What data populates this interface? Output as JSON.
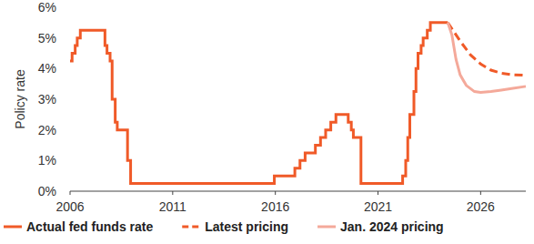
{
  "chart_data": {
    "type": "line",
    "y_label": "Policy rate",
    "xlim": [
      2006,
      2028.2
    ],
    "xticks": [
      2006,
      2011,
      2016,
      2021,
      2026
    ],
    "ylim": [
      0,
      6
    ],
    "yticks": [
      {
        "value": 0,
        "label": "0%"
      },
      {
        "value": 1,
        "label": "1%"
      },
      {
        "value": 2,
        "label": "2%"
      },
      {
        "value": 3,
        "label": "3%"
      },
      {
        "value": 4,
        "label": "4%"
      },
      {
        "value": 5,
        "label": "5%"
      },
      {
        "value": 6,
        "label": "6%"
      }
    ],
    "grid": false,
    "legend": "bottom",
    "series": [
      {
        "name": "Actual fed funds rate",
        "color": "#f05a28",
        "line_style": "solid",
        "x": [
          2006.0,
          2006.1,
          2006.1,
          2006.25,
          2006.25,
          2006.35,
          2006.35,
          2006.5,
          2006.5,
          2007.7,
          2007.7,
          2007.8,
          2007.8,
          2007.95,
          2007.95,
          2008.05,
          2008.05,
          2008.2,
          2008.2,
          2008.3,
          2008.3,
          2008.8,
          2008.8,
          2008.95,
          2008.95,
          2015.95,
          2015.95,
          2016.95,
          2016.95,
          2017.2,
          2017.2,
          2017.45,
          2017.45,
          2017.95,
          2017.95,
          2018.2,
          2018.2,
          2018.45,
          2018.45,
          2018.7,
          2018.7,
          2018.95,
          2018.95,
          2019.55,
          2019.55,
          2019.7,
          2019.7,
          2019.8,
          2019.8,
          2020.17,
          2020.17,
          2022.2,
          2022.2,
          2022.35,
          2022.35,
          2022.45,
          2022.45,
          2022.55,
          2022.55,
          2022.75,
          2022.75,
          2022.85,
          2022.85,
          2022.95,
          2022.95,
          2023.1,
          2023.1,
          2023.2,
          2023.2,
          2023.4,
          2023.4,
          2023.55,
          2023.55,
          2024.4
        ],
        "values": [
          4.25,
          4.25,
          4.5,
          4.5,
          4.75,
          4.75,
          5.0,
          5.0,
          5.25,
          5.25,
          4.75,
          4.75,
          4.5,
          4.5,
          4.25,
          4.25,
          3.0,
          3.0,
          2.25,
          2.25,
          2.0,
          2.0,
          1.0,
          1.0,
          0.25,
          0.25,
          0.5,
          0.5,
          0.75,
          0.75,
          1.0,
          1.0,
          1.25,
          1.25,
          1.5,
          1.5,
          1.75,
          1.75,
          2.0,
          2.0,
          2.25,
          2.25,
          2.5,
          2.5,
          2.25,
          2.25,
          2.0,
          2.0,
          1.75,
          1.75,
          0.25,
          0.25,
          0.5,
          0.5,
          1.0,
          1.0,
          1.75,
          1.75,
          2.5,
          2.5,
          3.25,
          3.25,
          4.0,
          4.0,
          4.5,
          4.5,
          4.75,
          4.75,
          5.0,
          5.0,
          5.25,
          5.25,
          5.5,
          5.5
        ]
      },
      {
        "name": "Latest pricing",
        "color": "#f05a28",
        "line_style": "dashed",
        "x": [
          2024.4,
          2024.7,
          2025.0,
          2025.5,
          2026.0,
          2026.5,
          2027.0,
          2027.5,
          2028.2
        ],
        "values": [
          5.5,
          5.2,
          4.9,
          4.45,
          4.15,
          3.95,
          3.85,
          3.8,
          3.78
        ]
      },
      {
        "name": "Jan. 2024 pricing",
        "color": "#f4a99a",
        "line_style": "solid",
        "x": [
          2024.4,
          2024.6,
          2024.8,
          2025.0,
          2025.3,
          2025.7,
          2026.0,
          2026.5,
          2027.0,
          2027.5,
          2028.2
        ],
        "values": [
          5.5,
          5.1,
          4.3,
          3.8,
          3.45,
          3.25,
          3.22,
          3.25,
          3.3,
          3.35,
          3.42
        ]
      }
    ]
  }
}
